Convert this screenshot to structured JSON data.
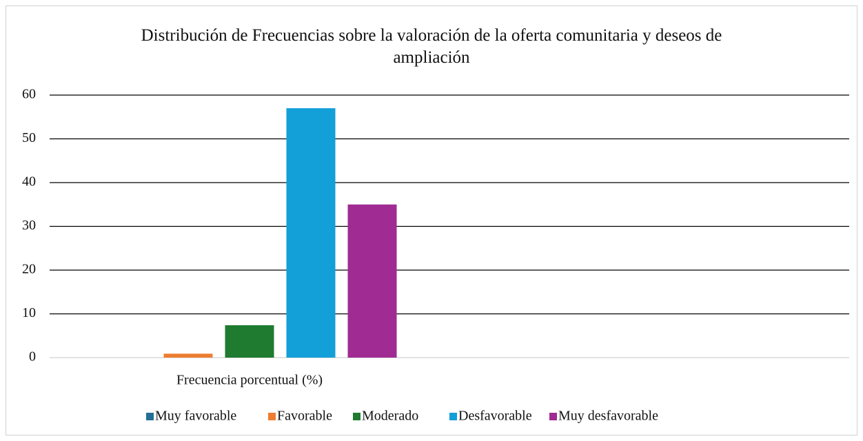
{
  "chart_data": {
    "type": "bar",
    "title": "Distribución de Frecuencias sobre la valoración de la oferta comunitaria y deseos de ampliación",
    "categories": [
      "Frecuencia porcentual (%)",
      null
    ],
    "series": [
      {
        "name": "Muy favorable",
        "color": "#236f96",
        "values": [
          0,
          null
        ]
      },
      {
        "name": "Favorable",
        "color": "#ed7d31",
        "values": [
          0.9,
          null
        ]
      },
      {
        "name": "Moderado",
        "color": "#1e7b30",
        "values": [
          7.4,
          null
        ]
      },
      {
        "name": "Desfavorable",
        "color": "#139fd8",
        "values": [
          57,
          null
        ]
      },
      {
        "name": "Muy desfavorable",
        "color": "#a02b93",
        "values": [
          35,
          null
        ]
      }
    ],
    "ylim": [
      0,
      60
    ],
    "yticks": [
      0,
      10,
      20,
      30,
      40,
      50,
      60
    ],
    "grid": true,
    "legend": "bottom"
  }
}
